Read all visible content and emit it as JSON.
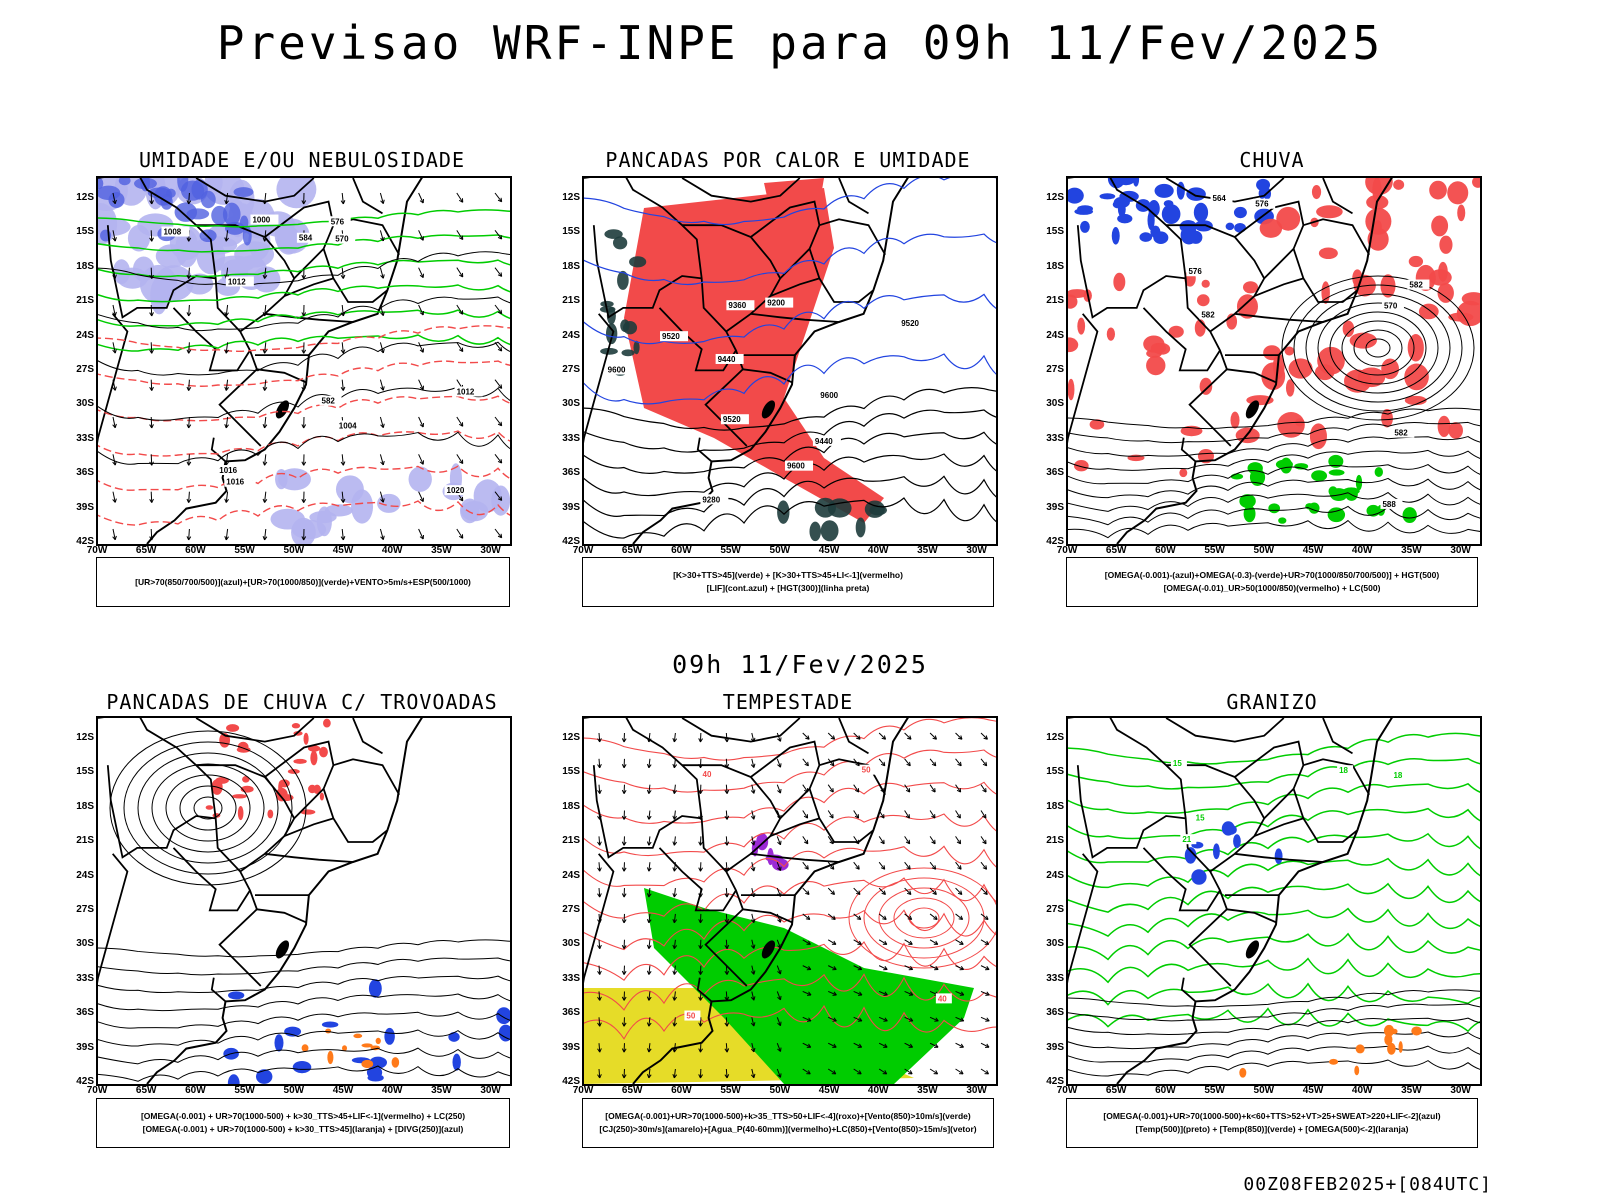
{
  "title": "Previsao WRF-INPE  para 09h 11/Fev/2025",
  "subtitle": "09h 11/Fev/2025",
  "run_stamp": "00Z08FEB2025+[084UTC]",
  "lat_labels": [
    "12S",
    "15S",
    "18S",
    "21S",
    "24S",
    "27S",
    "30S",
    "33S",
    "36S",
    "39S",
    "42S"
  ],
  "lon_labels": [
    "70W",
    "65W",
    "60W",
    "55W",
    "50W",
    "45W",
    "40W",
    "35W",
    "30W"
  ],
  "colors": {
    "red": "#f24a4a",
    "blue": "#2244e0",
    "green": "#00cc00",
    "lavender": "#b4b4f0",
    "yellow": "#e6dc28",
    "darkteal": "#1e3c3c",
    "purple": "#9b2ad6",
    "orange": "#ff7a1a"
  },
  "panels": [
    {
      "id": "p1",
      "title": "UMIDADE E/OU NEBULOSIDADE",
      "legend": [
        "[UR>70(850/700/500)](azul)+[UR>70(1000/850)](verde)+VENTO>5m/s+ESP(500/1000)"
      ],
      "contour_labels": [
        "1012",
        "1012",
        "1008",
        "1016",
        "1016",
        "1020",
        "1004",
        "1000",
        "570",
        "576",
        "582",
        "584"
      ]
    },
    {
      "id": "p2",
      "title": "PANCADAS POR CALOR E UMIDADE",
      "legend": [
        "[K>30+TTS>45](verde) + [K>30+TTS>45+LI<-1](vermelho)",
        "[LIF](cont.azul) + [HGT(300)](linha preta)"
      ],
      "contour_labels": [
        "9600",
        "9520",
        "9600",
        "9600",
        "9520",
        "9440",
        "9360",
        "9280",
        "9200",
        "9520",
        "9440"
      ]
    },
    {
      "id": "p3",
      "title": "CHUVA",
      "legend": [
        "[OMEGA(-0.001)-(azul)+OMEGA(-0.3)-(verde)+UR>70(1000/850/700/500)] + HGT(500)",
        "[OMEGA(-0.01)_UR>50(1000/850)(vermelho) + LC(500)"
      ],
      "contour_labels": [
        "582",
        "582",
        "588",
        "576",
        "570",
        "564",
        "576",
        "582"
      ]
    },
    {
      "id": "p4",
      "title": "PANCADAS DE CHUVA C/ TROVOADAS",
      "legend": [
        "[OMEGA(-0.001) + UR>70(1000-500) + k>30_TTS>45+LIF<-1](vermelho) + LC(250)",
        "[OMEGA(-0.001) + UR>70(1000-500) + k>30_TTS>45](laranja) + [DIVG(250)](azul)"
      ],
      "contour_labels": []
    },
    {
      "id": "p5",
      "title": "TEMPESTADE",
      "legend": [
        "[OMEGA(-0.001)+UR>70(1000-500)+k>35_TTS>50+LIF<-4](roxo)+[Vento(850)>10m/s](verde)",
        "[CJ(250)>30m/s](amarelo)+[Agua_P(40-60mm)](vermelho)+LC(850)+[Vento(850)>15m/s](vetor)"
      ],
      "contour_labels": [
        "40",
        "50",
        "40",
        "50"
      ]
    },
    {
      "id": "p6",
      "title": "GRANIZO",
      "legend": [
        "[OMEGA(-0.001)+UR>70(1000-500)+k<60+TTS>52+VT>25+SWEAT>220+LIF<-2](azul)",
        "[Temp(500)](preto) + [Temp(850)](verde) + [OMEGA(500)<-2](laranja)"
      ],
      "contour_labels": [
        "15",
        "18",
        "21",
        "15",
        "18"
      ]
    }
  ]
}
